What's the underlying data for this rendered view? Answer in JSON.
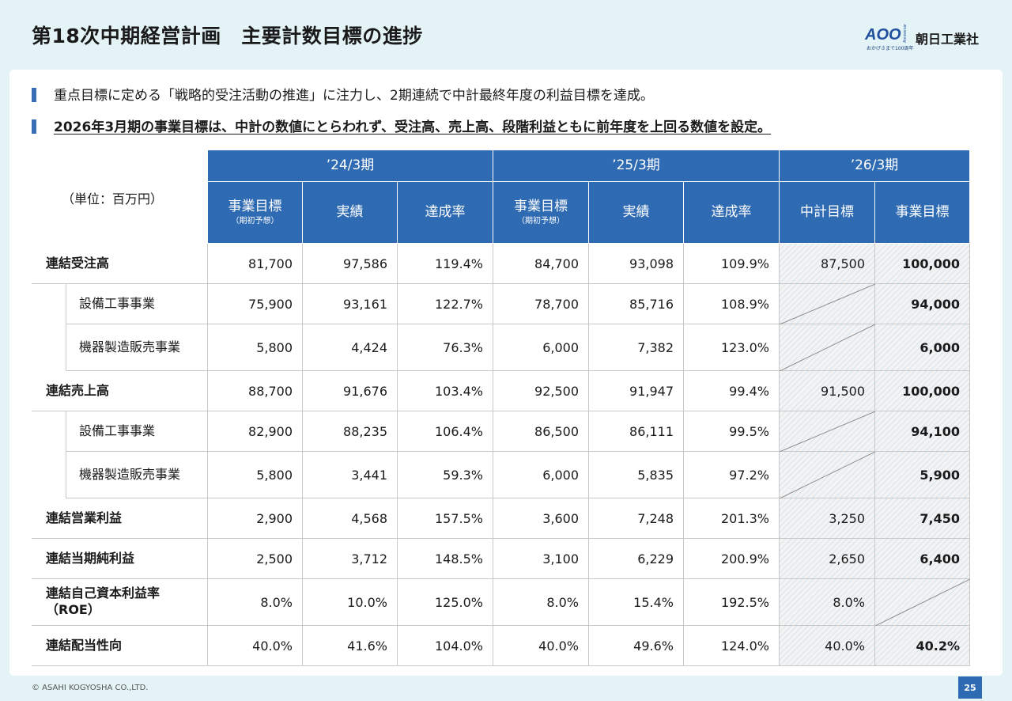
{
  "page": {
    "title": "第18次中期経営計画　主要計数目標の進捗",
    "logo": {
      "tagline": "おかげさまで100周年",
      "name": "朝日工業社",
      "mark_text": "AOO",
      "mark_sub": "Anniversary"
    },
    "bullets": [
      "重点目標に定める「戦略的受注活動の推進」に注力し、2期連続で中計最終年度の利益目標を達成。",
      "2026年3月期の事業目標は、中計の数値にとらわれず、受注高、売上高、段階利益ともに前年度を上回る数値を設定。"
    ],
    "footer": "© ASAHI KOGYOSHA CO.,LTD.",
    "page_number": "25",
    "colors": {
      "header_blue": "#2f6bb3",
      "accent_bar": "#3a6fb8",
      "background": "#e4f3f6"
    }
  },
  "table": {
    "unit_label": "（単位：百万円）",
    "periods": [
      "’24/3期",
      "’25/3期",
      "’26/3期"
    ],
    "columns": [
      {
        "label": "事業目標",
        "sub": "（期初予想）"
      },
      {
        "label": "実績",
        "sub": ""
      },
      {
        "label": "達成率",
        "sub": ""
      },
      {
        "label": "事業目標",
        "sub": "（期初予想）"
      },
      {
        "label": "実績",
        "sub": ""
      },
      {
        "label": "達成率",
        "sub": ""
      },
      {
        "label": "中計目標",
        "sub": ""
      },
      {
        "label": "事業目標",
        "sub": ""
      }
    ],
    "rows": [
      {
        "label": "連結受注高",
        "main": true,
        "values": [
          "81,700",
          "97,586",
          "119.4%",
          "84,700",
          "93,098",
          "109.9%",
          "87,500",
          "100,000"
        ]
      },
      {
        "label": "設備工事事業",
        "main": false,
        "values": [
          "75,900",
          "93,161",
          "122.7%",
          "78,700",
          "85,716",
          "108.9%",
          "",
          "94,000"
        ]
      },
      {
        "label": "機器製造販売事業",
        "main": false,
        "values": [
          "5,800",
          "4,424",
          "76.3%",
          "6,000",
          "7,382",
          "123.0%",
          "",
          "6,000"
        ]
      },
      {
        "label": "連結売上高",
        "main": true,
        "values": [
          "88,700",
          "91,676",
          "103.4%",
          "92,500",
          "91,947",
          "99.4%",
          "91,500",
          "100,000"
        ]
      },
      {
        "label": "設備工事事業",
        "main": false,
        "values": [
          "82,900",
          "88,235",
          "106.4%",
          "86,500",
          "86,111",
          "99.5%",
          "",
          "94,100"
        ]
      },
      {
        "label": "機器製造販売事業",
        "main": false,
        "values": [
          "5,800",
          "3,441",
          "59.3%",
          "6,000",
          "5,835",
          "97.2%",
          "",
          "5,900"
        ]
      },
      {
        "label": "連結営業利益",
        "main": true,
        "values": [
          "2,900",
          "4,568",
          "157.5%",
          "3,600",
          "7,248",
          "201.3%",
          "3,250",
          "7,450"
        ]
      },
      {
        "label": "連結当期純利益",
        "main": true,
        "values": [
          "2,500",
          "3,712",
          "148.5%",
          "3,100",
          "6,229",
          "200.9%",
          "2,650",
          "6,400"
        ]
      },
      {
        "label": "連結自己資本利益率（ROE）",
        "main": true,
        "values": [
          "8.0%",
          "10.0%",
          "125.0%",
          "8.0%",
          "15.4%",
          "192.5%",
          "8.0%",
          ""
        ]
      },
      {
        "label": "連結配当性向",
        "main": true,
        "values": [
          "40.0%",
          "41.6%",
          "104.0%",
          "40.0%",
          "49.6%",
          "124.0%",
          "40.0%",
          "40.2%"
        ]
      }
    ]
  }
}
